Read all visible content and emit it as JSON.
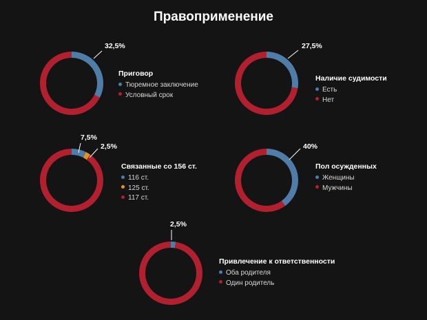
{
  "title": "Правоприменение",
  "colors": {
    "blue": "#4f7da8",
    "red": "#b1202e",
    "orange": "#e6951c"
  },
  "chart_data": [
    {
      "type": "pie",
      "title": "Приговор",
      "series": [
        {
          "name": "Тюремное заключение",
          "value": 32.5,
          "color": "#4f7da8",
          "label": "32,5%"
        },
        {
          "name": "Условный срок",
          "value": 67.5,
          "color": "#b1202e",
          "label": ""
        }
      ]
    },
    {
      "type": "pie",
      "title": "Наличие судимости",
      "series": [
        {
          "name": "Есть",
          "value": 27.5,
          "color": "#4f7da8",
          "label": "27,5%"
        },
        {
          "name": "Нет",
          "value": 72.5,
          "color": "#b1202e",
          "label": ""
        }
      ]
    },
    {
      "type": "pie",
      "title": "Связанные со 156 ст.",
      "series": [
        {
          "name": "116 ст.",
          "value": 7.5,
          "color": "#4f7da8",
          "label": "7,5%"
        },
        {
          "name": "125 ст.",
          "value": 2.5,
          "color": "#e6951c",
          "label": "2,5%"
        },
        {
          "name": "117 ст.",
          "value": 90,
          "color": "#b1202e",
          "label": ""
        }
      ]
    },
    {
      "type": "pie",
      "title": "Пол осужденных",
      "series": [
        {
          "name": "Женщины",
          "value": 40,
          "color": "#4f7da8",
          "label": "40%"
        },
        {
          "name": "Мужчины",
          "value": 60,
          "color": "#b1202e",
          "label": ""
        }
      ]
    },
    {
      "type": "pie",
      "title": "Привлечение к ответственности",
      "series": [
        {
          "name": "Оба родителя",
          "value": 2.5,
          "color": "#4f7da8",
          "label": "2,5%"
        },
        {
          "name": "Один родитель",
          "value": 97.5,
          "color": "#b1202e",
          "label": ""
        }
      ]
    }
  ]
}
